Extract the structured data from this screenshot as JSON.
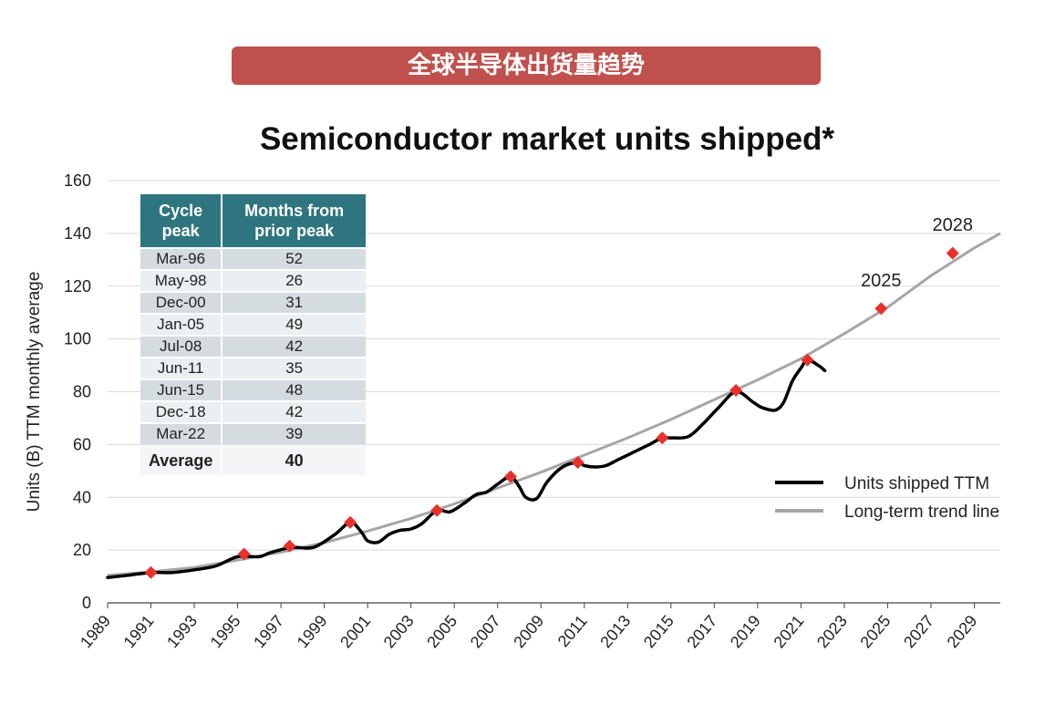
{
  "banner": "全球半导体出货量趋势",
  "chart_data": {
    "type": "line",
    "title": "Semiconductor market units shipped*",
    "ylabel": "Units (B) TTM monthly average",
    "xlabel": "",
    "ylim": [
      0,
      160
    ],
    "xlim": [
      1989,
      2030.2
    ],
    "y_ticks": [
      "0",
      "20",
      "40",
      "60",
      "80",
      "100",
      "120",
      "140",
      "160"
    ],
    "x_ticks": [
      "1989",
      "1991",
      "1993",
      "1995",
      "1997",
      "1999",
      "2001",
      "2003",
      "2005",
      "2007",
      "2009",
      "2011",
      "2013",
      "2015",
      "2017",
      "2019",
      "2021",
      "2023",
      "2025",
      "2027",
      "2029"
    ],
    "grid": "horizontal",
    "legend_position": "bottom-right",
    "series": [
      {
        "name": "Units shipped TTM",
        "color": "#000000",
        "points": [
          [
            1989,
            9.6
          ],
          [
            1990,
            10.5
          ],
          [
            1991,
            11.5
          ],
          [
            1992,
            11.5
          ],
          [
            1993,
            12.5
          ],
          [
            1994,
            14
          ],
          [
            1995,
            17.5
          ],
          [
            1996,
            17.5
          ],
          [
            1996.5,
            19
          ],
          [
            1997.5,
            21
          ],
          [
            1998.5,
            21
          ],
          [
            1999.5,
            26
          ],
          [
            2000.2,
            30.5
          ],
          [
            2000.7,
            27
          ],
          [
            2001,
            23.5
          ],
          [
            2001.5,
            23
          ],
          [
            2002,
            26
          ],
          [
            2002.5,
            27.5
          ],
          [
            2003,
            28
          ],
          [
            2003.5,
            30
          ],
          [
            2004.2,
            35
          ],
          [
            2004.8,
            34.5
          ],
          [
            2005.5,
            38
          ],
          [
            2006,
            41
          ],
          [
            2006.5,
            42
          ],
          [
            2007,
            45
          ],
          [
            2007.6,
            47.8
          ],
          [
            2008,
            44
          ],
          [
            2008.3,
            40
          ],
          [
            2008.8,
            39.5
          ],
          [
            2009.3,
            46
          ],
          [
            2010,
            51.5
          ],
          [
            2010.7,
            53.2
          ],
          [
            2011,
            52
          ],
          [
            2011.5,
            51.5
          ],
          [
            2012,
            52
          ],
          [
            2012.5,
            54
          ],
          [
            2013,
            56
          ],
          [
            2013.5,
            58
          ],
          [
            2014,
            60
          ],
          [
            2014.6,
            62.5
          ],
          [
            2015,
            62.5
          ],
          [
            2015.8,
            63
          ],
          [
            2016.5,
            68
          ],
          [
            2017.2,
            74
          ],
          [
            2018,
            80
          ],
          [
            2018.8,
            76
          ],
          [
            2019.2,
            74
          ],
          [
            2019.8,
            73
          ],
          [
            2020.2,
            76
          ],
          [
            2020.6,
            84
          ],
          [
            2021,
            89
          ],
          [
            2021.3,
            92
          ],
          [
            2021.8,
            90
          ],
          [
            2022.1,
            88
          ]
        ]
      },
      {
        "name": "Long-term trend line",
        "color": "#a6a6a6",
        "points": [
          [
            1989,
            10.4
          ],
          [
            1991,
            11.8
          ],
          [
            1993,
            13.4
          ],
          [
            1995,
            16.2
          ],
          [
            1997,
            19.2
          ],
          [
            1999,
            22.8
          ],
          [
            2001,
            27.2
          ],
          [
            2003,
            32
          ],
          [
            2005,
            37.5
          ],
          [
            2007,
            43.5
          ],
          [
            2009,
            49.5
          ],
          [
            2011,
            56
          ],
          [
            2013,
            62.5
          ],
          [
            2015,
            69.5
          ],
          [
            2017,
            77
          ],
          [
            2019,
            84.5
          ],
          [
            2021,
            92.5
          ],
          [
            2023,
            102
          ],
          [
            2025,
            112
          ],
          [
            2027,
            124
          ],
          [
            2029,
            134.5
          ],
          [
            2030.2,
            140
          ]
        ],
        "early_segment_end": 2003.5,
        "later_segment_start": 2003.0
      }
    ],
    "peak_markers": {
      "color": "#e8312a",
      "points": [
        [
          1991,
          11.5
        ],
        [
          1995.3,
          18.5
        ],
        [
          1997.4,
          21.5
        ],
        [
          2000.2,
          30.5
        ],
        [
          2004.2,
          35
        ],
        [
          2007.6,
          47.8
        ],
        [
          2010.7,
          53.2
        ],
        [
          2014.6,
          62.5
        ],
        [
          2018,
          80.5
        ],
        [
          2021.3,
          92
        ],
        [
          2024.7,
          111.5
        ],
        [
          2028,
          132.5
        ]
      ]
    },
    "annotations": [
      {
        "text": "2025",
        "x": 2024.7,
        "y": 120
      },
      {
        "text": "2028",
        "x": 2028,
        "y": 141
      }
    ],
    "table": {
      "headers": [
        "Cycle peak",
        "Months from prior peak"
      ],
      "rows": [
        [
          "Mar-96",
          "52"
        ],
        [
          "May-98",
          "26"
        ],
        [
          "Dec-00",
          "31"
        ],
        [
          "Jan-05",
          "49"
        ],
        [
          "Jul-08",
          "42"
        ],
        [
          "Jun-11",
          "35"
        ],
        [
          "Jun-15",
          "48"
        ],
        [
          "Dec-18",
          "42"
        ],
        [
          "Mar-22",
          "39"
        ]
      ],
      "footer": [
        "Average",
        "40"
      ]
    }
  }
}
